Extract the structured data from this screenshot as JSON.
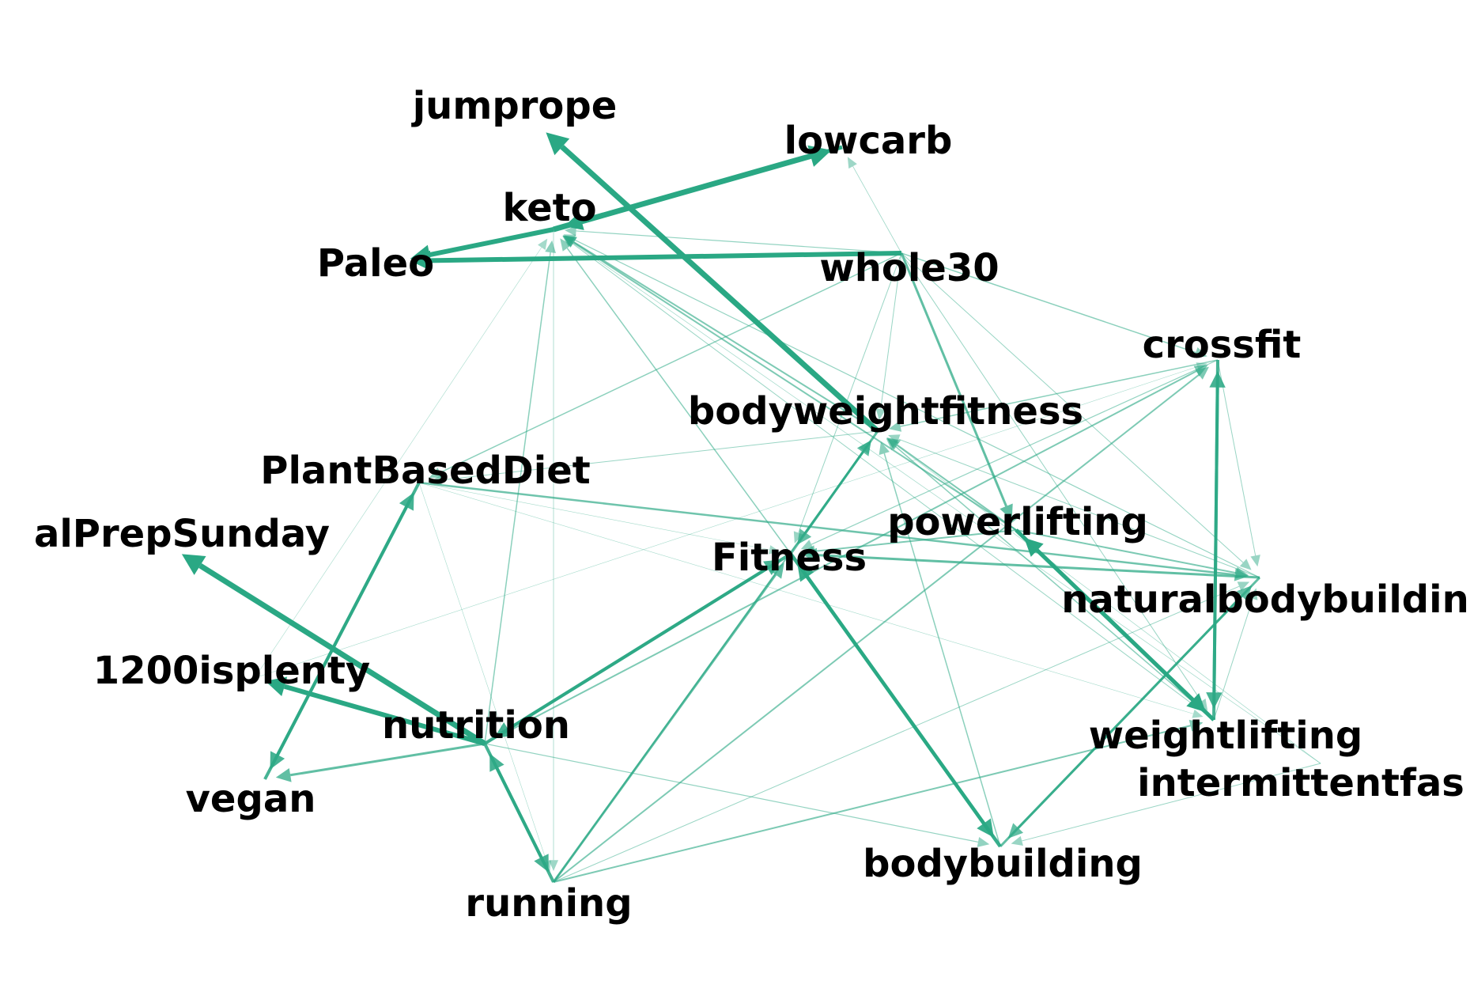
{
  "graph": {
    "edge_color": "#2aa884",
    "label_color": "#000000",
    "nodes": [
      {
        "id": "jumprope",
        "label": "jumprope"
      },
      {
        "id": "lowcarb",
        "label": "lowcarb"
      },
      {
        "id": "keto",
        "label": "keto"
      },
      {
        "id": "Paleo",
        "label": "Paleo"
      },
      {
        "id": "whole30",
        "label": "whole30"
      },
      {
        "id": "crossfit",
        "label": "crossfit"
      },
      {
        "id": "bodyweightfitness",
        "label": "bodyweightfitness"
      },
      {
        "id": "PlantBasedDiet",
        "label": "PlantBasedDiet"
      },
      {
        "id": "MealPrepSunday",
        "label": "alPrepSunday"
      },
      {
        "id": "powerlifting",
        "label": "powerlifting"
      },
      {
        "id": "Fitness",
        "label": "Fitness"
      },
      {
        "id": "naturalbodybuilding",
        "label": "naturalbodybuildin"
      },
      {
        "id": "1200isplenty",
        "label": "1200isplenty"
      },
      {
        "id": "nutrition",
        "label": "nutrition"
      },
      {
        "id": "weightlifting",
        "label": "weightlifting"
      },
      {
        "id": "vegan",
        "label": "vegan"
      },
      {
        "id": "intermittentfasting",
        "label": "intermittentfas"
      },
      {
        "id": "bodybuilding",
        "label": "bodybuilding"
      },
      {
        "id": "running",
        "label": "running"
      }
    ],
    "edges": [
      {
        "source": "bodyweightfitness",
        "target": "jumprope",
        "weight": 7
      },
      {
        "source": "keto",
        "target": "lowcarb",
        "weight": 7
      },
      {
        "source": "lowcarb",
        "target": "keto",
        "weight": 5
      },
      {
        "source": "keto",
        "target": "Paleo",
        "weight": 6
      },
      {
        "source": "whole30",
        "target": "Paleo",
        "weight": 6
      },
      {
        "source": "whole30",
        "target": "lowcarb",
        "weight": 0.8
      },
      {
        "source": "whole30",
        "target": "keto",
        "weight": 1.2
      },
      {
        "source": "whole30",
        "target": "crossfit",
        "weight": 1.5
      },
      {
        "source": "whole30",
        "target": "bodyweightfitness",
        "weight": 1
      },
      {
        "source": "whole30",
        "target": "powerlifting",
        "weight": 3
      },
      {
        "source": "whole30",
        "target": "PlantBasedDiet",
        "weight": 1.5
      },
      {
        "source": "whole30",
        "target": "Fitness",
        "weight": 1
      },
      {
        "source": "whole30",
        "target": "naturalbodybuilding",
        "weight": 1
      },
      {
        "source": "whole30",
        "target": "weightlifting",
        "weight": 1
      },
      {
        "source": "bodyweightfitness",
        "target": "keto",
        "weight": 2
      },
      {
        "source": "powerlifting",
        "target": "keto",
        "weight": 2
      },
      {
        "source": "naturalbodybuilding",
        "target": "keto",
        "weight": 1.2
      },
      {
        "source": "weightlifting",
        "target": "keto",
        "weight": 1
      },
      {
        "source": "Fitness",
        "target": "keto",
        "weight": 1.5
      },
      {
        "source": "nutrition",
        "target": "keto",
        "weight": 1.5
      },
      {
        "source": "1200isplenty",
        "target": "keto",
        "weight": 0.6
      },
      {
        "source": "keto",
        "target": "running",
        "weight": 0.8
      },
      {
        "source": "crossfit",
        "target": "bodyweightfitness",
        "weight": 1.5
      },
      {
        "source": "crossfit",
        "target": "Fitness",
        "weight": 1.2
      },
      {
        "source": "crossfit",
        "target": "naturalbodybuilding",
        "weight": 1
      },
      {
        "source": "crossfit",
        "target": "weightlifting",
        "weight": 4
      },
      {
        "source": "weightlifting",
        "target": "crossfit",
        "weight": 4
      },
      {
        "source": "nutrition",
        "target": "crossfit",
        "weight": 2
      },
      {
        "source": "running",
        "target": "crossfit",
        "weight": 2
      },
      {
        "source": "bodyweightfitness",
        "target": "PlantBasedDiet",
        "weight": 1
      },
      {
        "source": "bodyweightfitness",
        "target": "Fitness",
        "weight": 3
      },
      {
        "source": "Fitness",
        "target": "bodyweightfitness",
        "weight": 3
      },
      {
        "source": "powerlifting",
        "target": "bodyweightfitness",
        "weight": 2
      },
      {
        "source": "running",
        "target": "bodyweightfitness",
        "weight": 2
      },
      {
        "source": "bodybuilding",
        "target": "bodyweightfitness",
        "weight": 1.5
      },
      {
        "source": "weightlifting",
        "target": "bodyweightfitness",
        "weight": 1.5
      },
      {
        "source": "naturalbodybuilding",
        "target": "bodyweightfitness",
        "weight": 1
      },
      {
        "source": "PlantBasedDiet",
        "target": "naturalbodybuilding",
        "weight": 2.5
      },
      {
        "source": "vegan",
        "target": "PlantBasedDiet",
        "weight": 4
      },
      {
        "source": "PlantBasedDiet",
        "target": "vegan",
        "weight": 4
      },
      {
        "source": "nutrition",
        "target": "MealPrepSunday",
        "weight": 7
      },
      {
        "source": "nutrition",
        "target": "1200isplenty",
        "weight": 6
      },
      {
        "source": "nutrition",
        "target": "vegan",
        "weight": 3
      },
      {
        "source": "nutrition",
        "target": "running",
        "weight": 4
      },
      {
        "source": "running",
        "target": "nutrition",
        "weight": 4
      },
      {
        "source": "Fitness",
        "target": "nutrition",
        "weight": 4
      },
      {
        "source": "nutrition",
        "target": "Fitness",
        "weight": 4
      },
      {
        "source": "powerlifting",
        "target": "Fitness",
        "weight": 2
      },
      {
        "source": "naturalbodybuilding",
        "target": "Fitness",
        "weight": 3
      },
      {
        "source": "Fitness",
        "target": "bodybuilding",
        "weight": 4.5
      },
      {
        "source": "bodybuilding",
        "target": "Fitness",
        "weight": 4.5
      },
      {
        "source": "running",
        "target": "Fitness",
        "weight": 3
      },
      {
        "source": "powerlifting",
        "target": "weightlifting",
        "weight": 5
      },
      {
        "source": "weightlifting",
        "target": "powerlifting",
        "weight": 5
      },
      {
        "source": "powerlifting",
        "target": "naturalbodybuilding",
        "weight": 2
      },
      {
        "source": "running",
        "target": "weightlifting",
        "weight": 2
      },
      {
        "source": "bodybuilding",
        "target": "naturalbodybuilding",
        "weight": 3
      },
      {
        "source": "naturalbodybuilding",
        "target": "bodybuilding",
        "weight": 3
      },
      {
        "source": "intermittentfasting",
        "target": "bodybuilding",
        "weight": 1
      },
      {
        "source": "intermittentfasting",
        "target": "bodyweightfitness",
        "weight": 0.7
      },
      {
        "source": "intermittentfasting",
        "target": "keto",
        "weight": 0.7
      },
      {
        "source": "running",
        "target": "naturalbodybuilding",
        "weight": 1
      },
      {
        "source": "nutrition",
        "target": "bodybuilding",
        "weight": 1.2
      },
      {
        "source": "PlantBasedDiet",
        "target": "Fitness",
        "weight": 0.6
      },
      {
        "source": "PlantBasedDiet",
        "target": "running",
        "weight": 0.5
      },
      {
        "source": "1200isplenty",
        "target": "crossfit",
        "weight": 0.5
      },
      {
        "source": "weightlifting",
        "target": "naturalbodybuilding",
        "weight": 1
      },
      {
        "source": "PlantBasedDiet",
        "target": "weightlifting",
        "weight": 0.5
      }
    ]
  }
}
